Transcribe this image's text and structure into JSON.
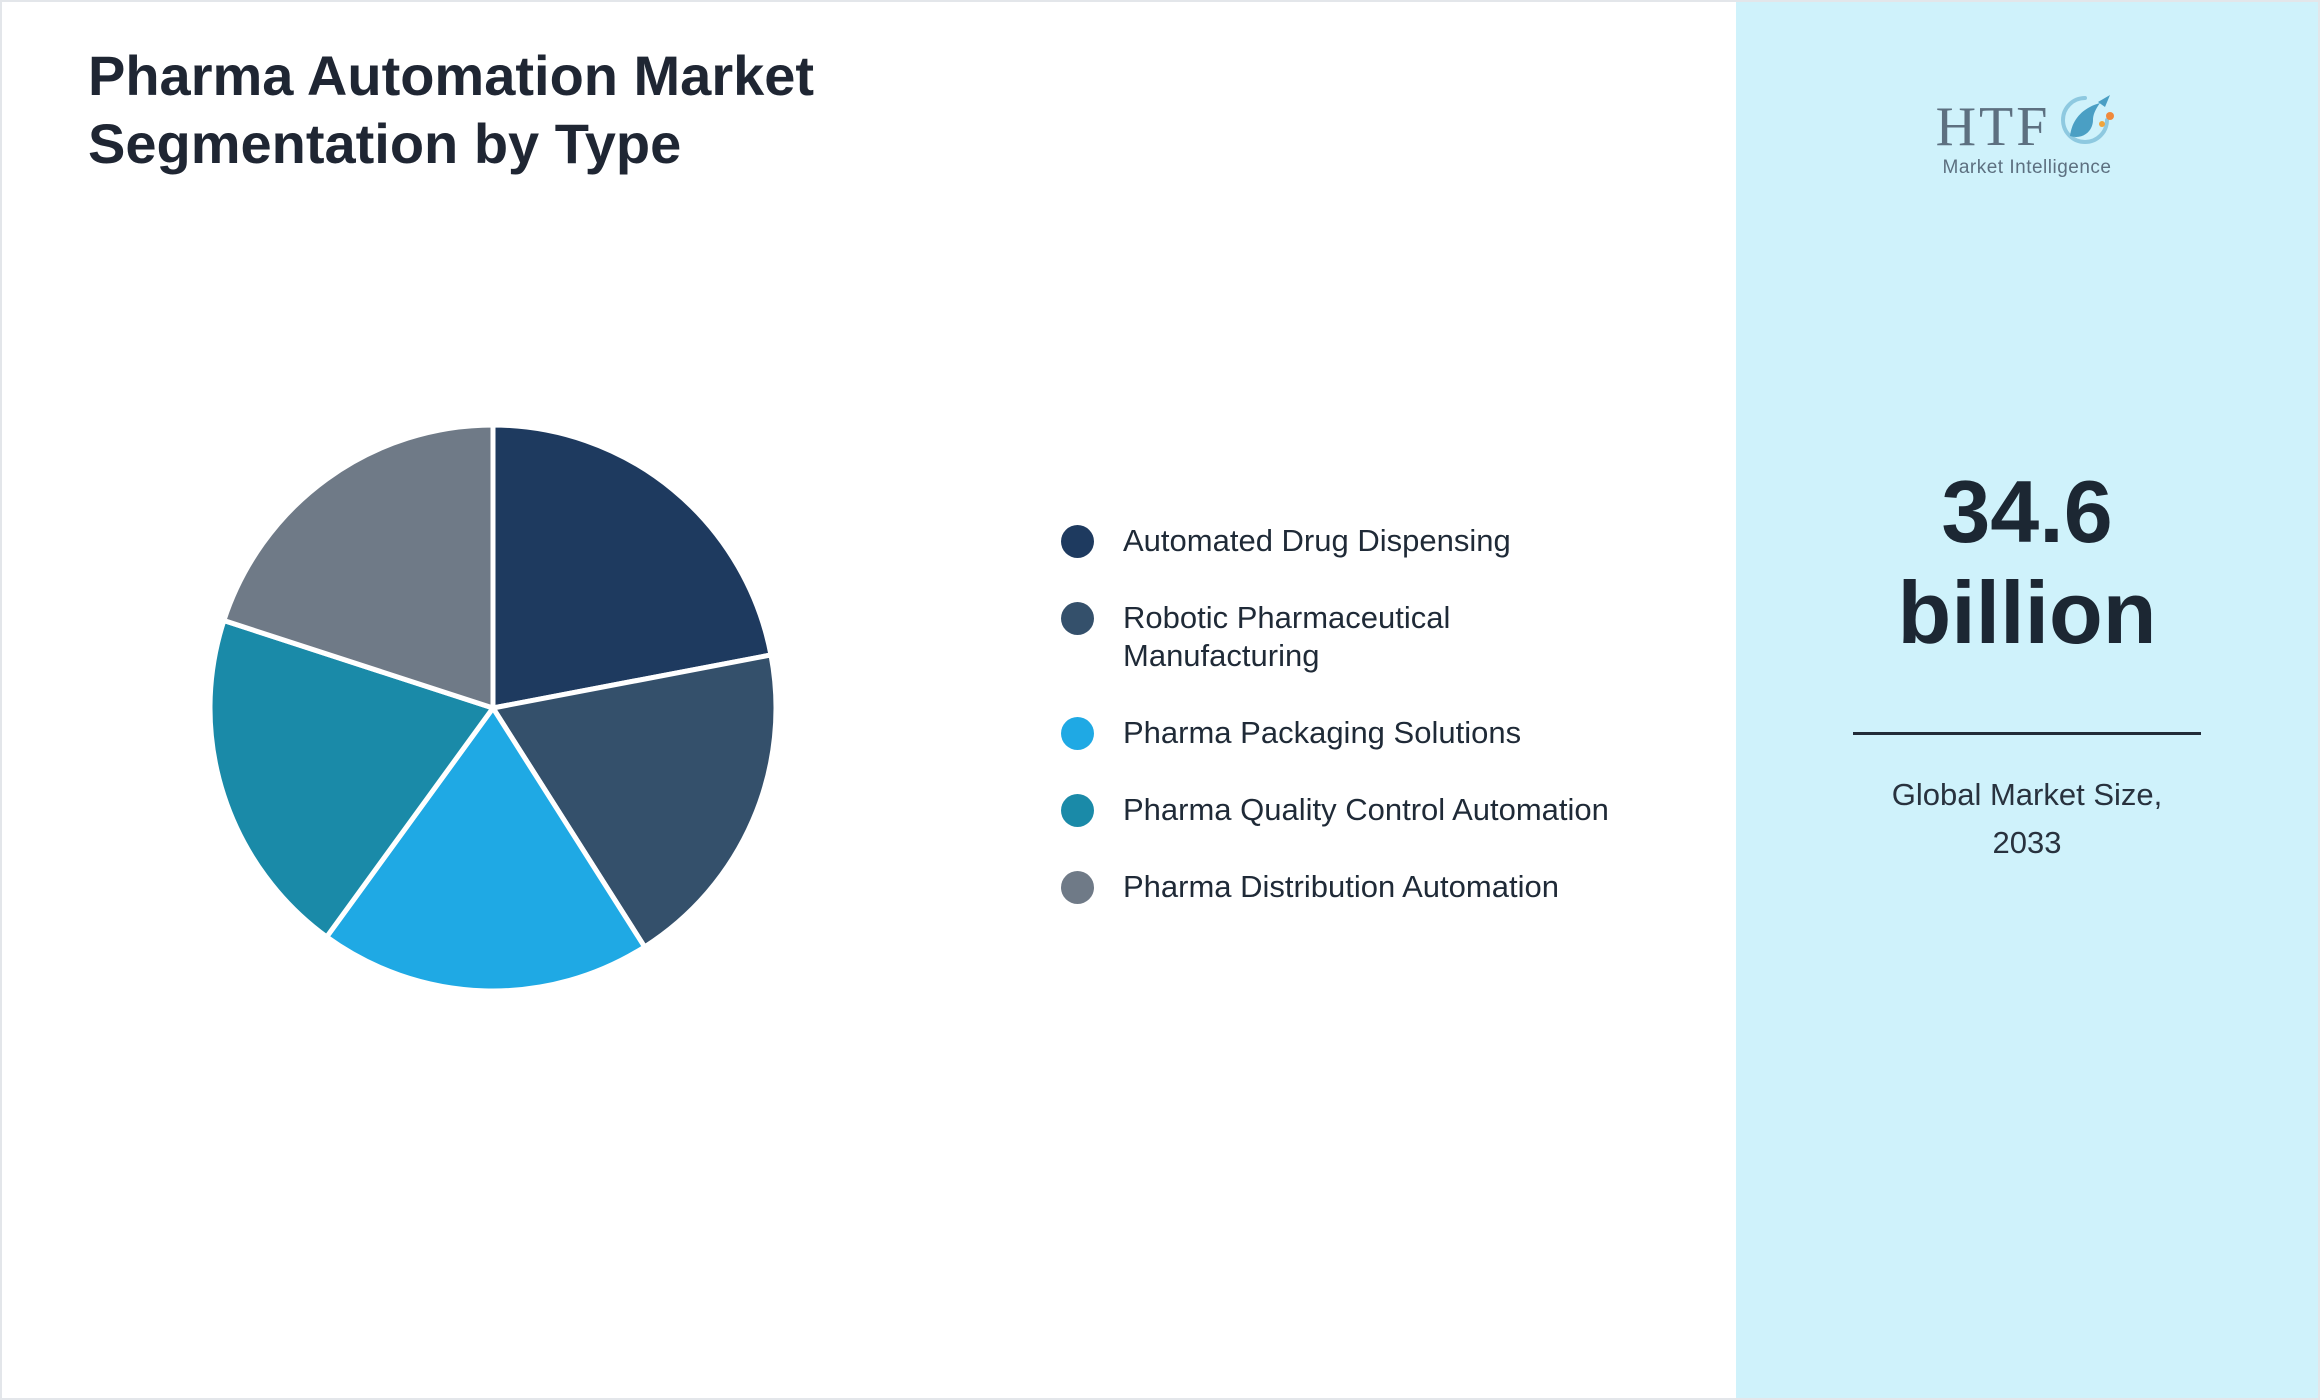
{
  "title": "Pharma Automation Market\nSegmentation by Type",
  "logo": {
    "text": "HTF",
    "subtitle": "Market Intelligence"
  },
  "sidebar": {
    "market_size_value": "34.6",
    "market_size_unit": "billion",
    "caption_line1": "Global Market Size,",
    "caption_line2": "2033"
  },
  "legend": {
    "items": [
      {
        "label": "Automated Drug Dispensing",
        "color": "#1e3a5f"
      },
      {
        "label": "Robotic Pharmaceutical\nManufacturing",
        "color": "#34506b"
      },
      {
        "label": "Pharma Packaging Solutions",
        "color": "#1fa9e4"
      },
      {
        "label": "Pharma Quality Control Automation",
        "color": "#1a8aa8"
      },
      {
        "label": "Pharma Distribution Automation",
        "color": "#6f7a87"
      }
    ]
  },
  "chart_data": {
    "type": "pie",
    "title": "Pharma Automation Market Segmentation by Type",
    "labels": [
      "Automated Drug Dispensing",
      "Robotic Pharmaceutical Manufacturing",
      "Pharma Packaging Solutions",
      "Pharma Quality Control Automation",
      "Pharma Distribution Automation"
    ],
    "values": [
      22,
      19,
      19,
      20,
      20
    ],
    "unit": "percent (estimated from slice angles, no data labels shown)",
    "colors": [
      "#1e3a5f",
      "#34506b",
      "#1fa9e4",
      "#1a8aa8",
      "#6f7a87"
    ],
    "start_angle_deg": 0,
    "direction": "clockwise",
    "legend_position": "right",
    "slice_separator_color": "#ffffff",
    "sidebar_accent_background": "#cff2fb",
    "annotation": "34.6 billion — Global Market Size, 2033"
  }
}
